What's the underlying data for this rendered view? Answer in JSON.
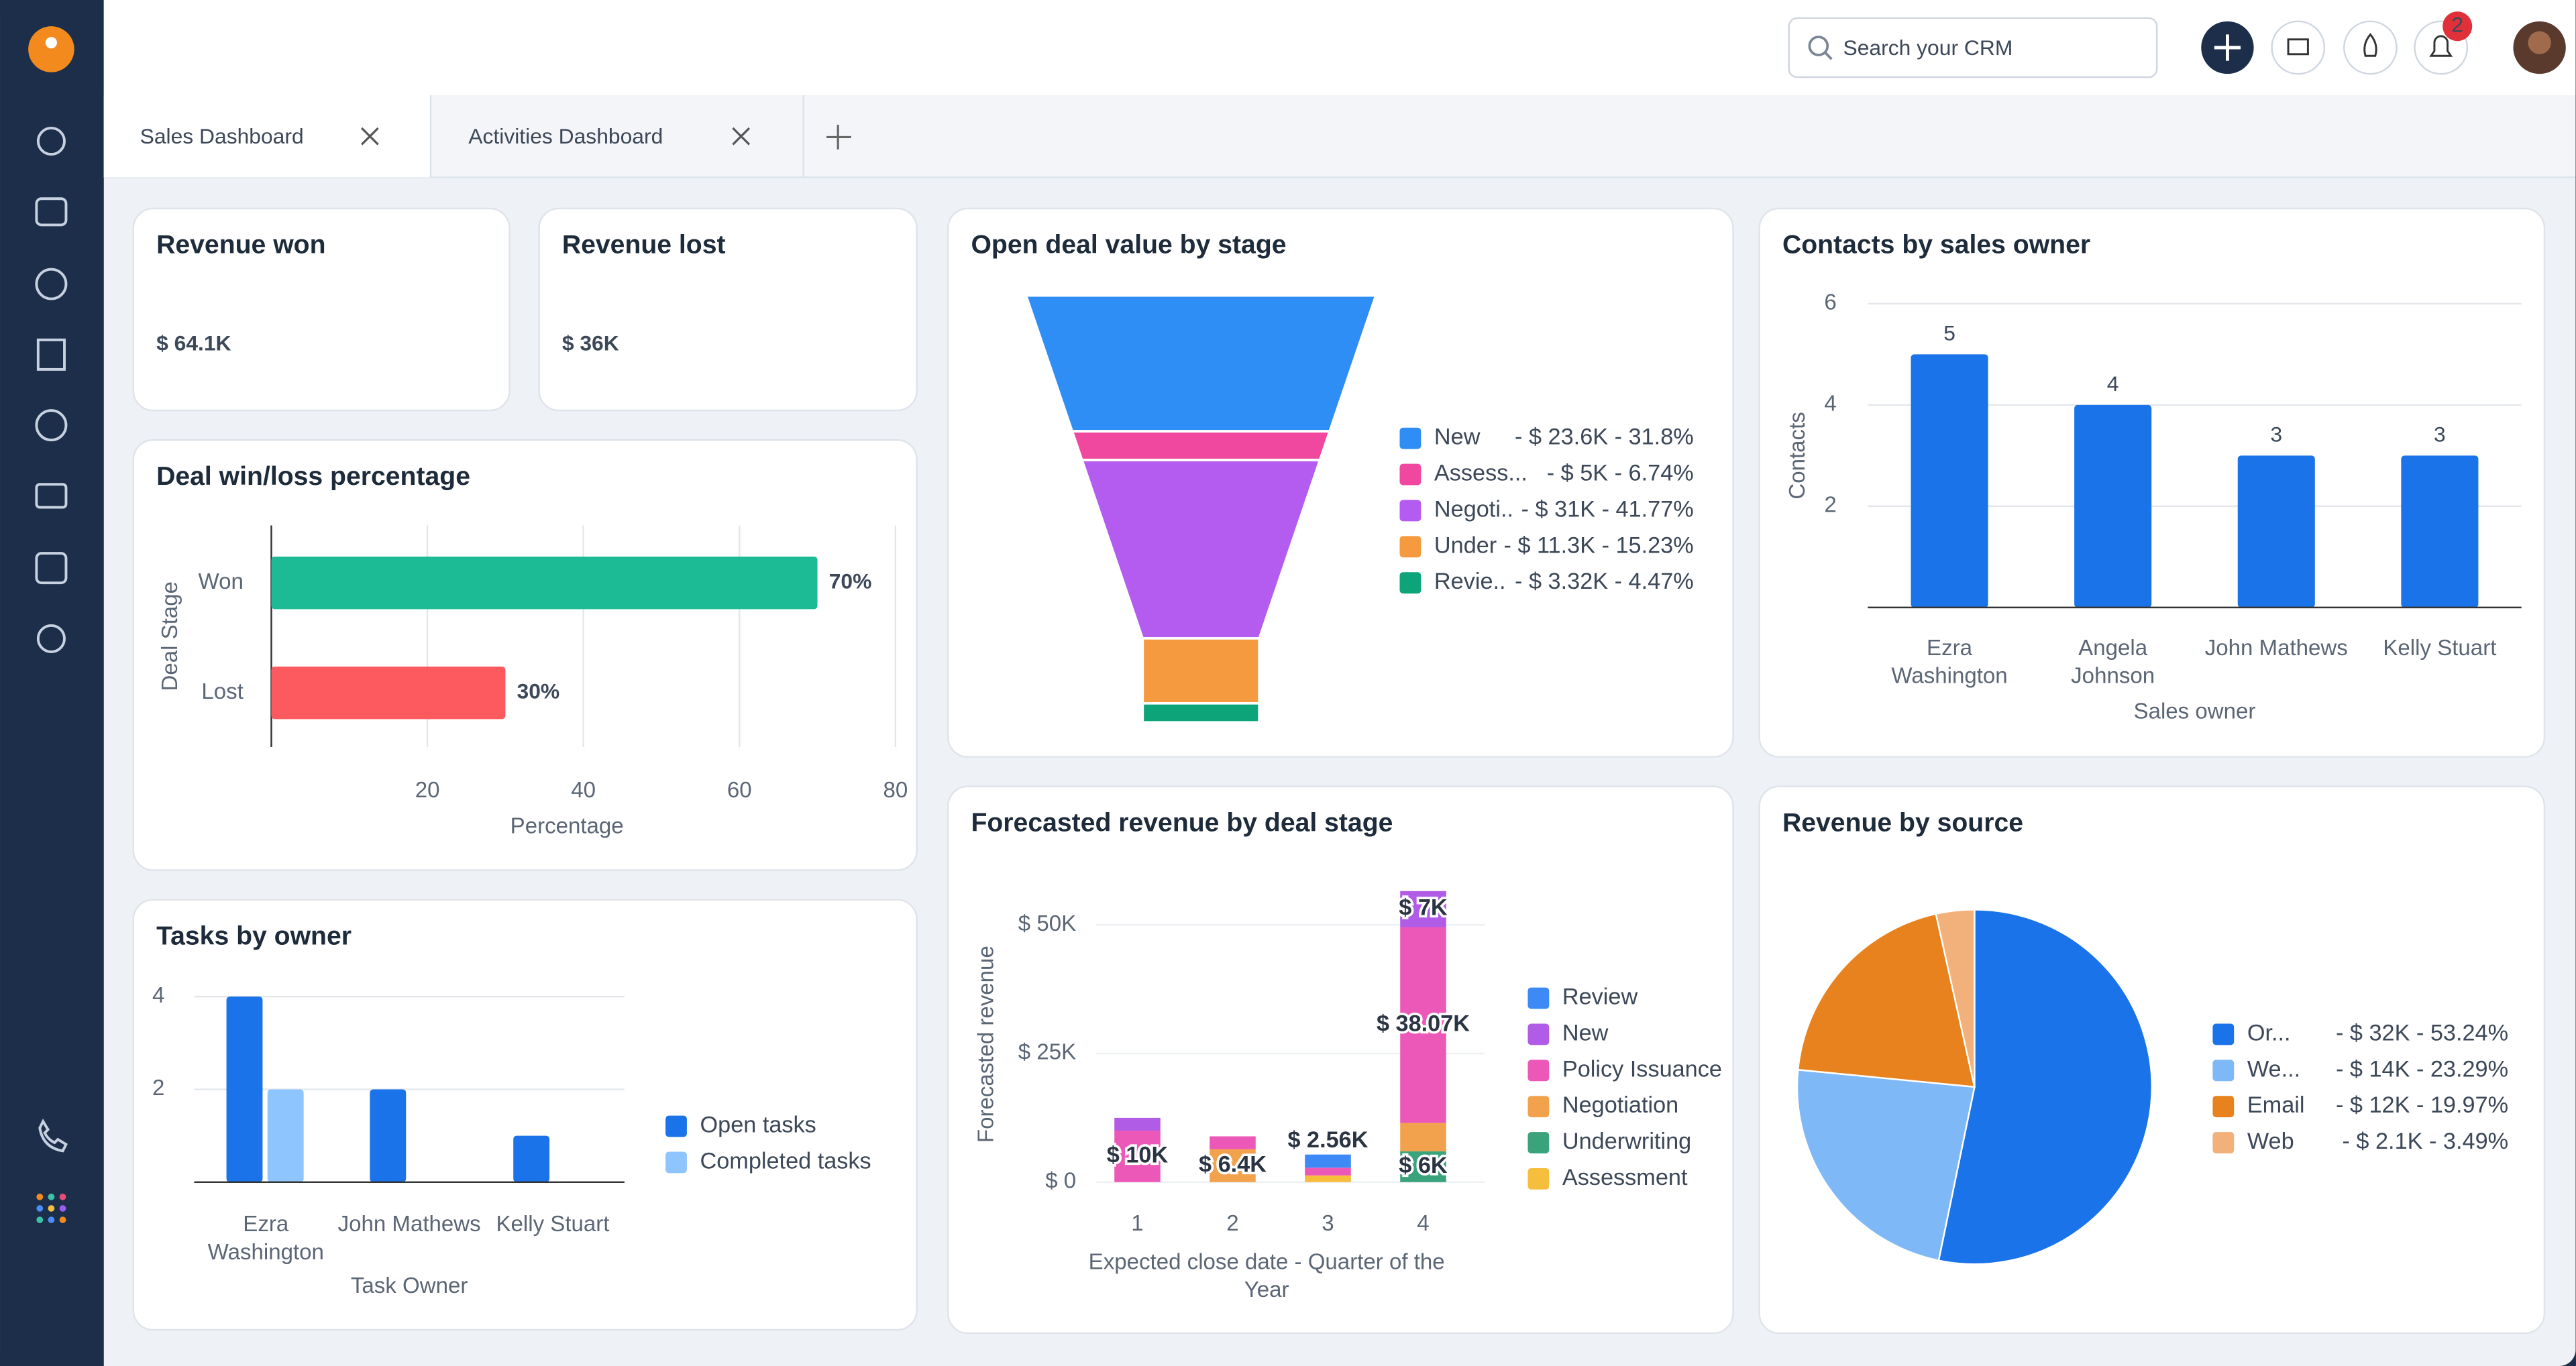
{
  "topbar": {
    "search_placeholder": "Search your CRM",
    "notification_count": "2"
  },
  "tabs": [
    "Sales Dashboard",
    "Activities Dashboard"
  ],
  "revenue_won": {
    "title": "Revenue won",
    "value": "$ 64.1K",
    "color": "#0f8a5f"
  },
  "revenue_lost": {
    "title": "Revenue lost",
    "value": "$ 36K",
    "color": "#e0313b"
  },
  "chart_data": [
    {
      "type": "hbar",
      "title": "Deal win/loss percentage",
      "categories": [
        "Won",
        "Lost"
      ],
      "values": [
        70,
        30
      ],
      "value_labels": [
        "70%",
        "30%"
      ],
      "colors": [
        "#1dba96",
        "#fc5a5e"
      ],
      "xlim": [
        0,
        80
      ],
      "xticks": [
        20,
        40,
        60,
        80
      ],
      "xlabel": "Percentage",
      "ylabel": "Deal Stage",
      "grid": true
    },
    {
      "type": "grouped_bar",
      "title": "Tasks by owner",
      "categories": [
        "Ezra Washington",
        "John Mathews",
        "Kelly Stuart"
      ],
      "series": [
        {
          "name": "Open tasks",
          "color": "#1a73e8",
          "values": [
            4,
            2,
            1
          ]
        },
        {
          "name": "Completed tasks",
          "color": "#8ec5ff",
          "values": [
            2,
            0,
            0
          ]
        }
      ],
      "ylim": [
        0,
        4
      ],
      "yticks": [
        2,
        4
      ],
      "xlabel": "Task Owner",
      "grid": true
    },
    {
      "type": "funnel",
      "title": "Open deal value by stage",
      "categories": [
        "New",
        "Assess...",
        "Negoti..",
        "Under",
        "Revie.."
      ],
      "values": [
        23600,
        5000,
        31000,
        11300,
        3320
      ],
      "value_labels": [
        "- $ 23.6K - 31.8%",
        "- $ 5K - 6.74%",
        "- $ 31K - 41.77%",
        "- $ 11.3K - 15.23%",
        "- $ 3.32K - 4.47%"
      ],
      "colors": [
        "#2f8ef5",
        "#f0489e",
        "#b45cf0",
        "#f59a3e",
        "#0ea47a"
      ]
    },
    {
      "type": "stacked_bar",
      "title": "Forecasted revenue by deal stage",
      "categories": [
        "1",
        "2",
        "3",
        "4"
      ],
      "series": [
        {
          "name": "Review",
          "color": "#3d8af7",
          "values": [
            0,
            0,
            2560,
            0
          ],
          "value_labels": [
            null,
            null,
            "$ 2.56K",
            null
          ]
        },
        {
          "name": "New",
          "color": "#b05ce6",
          "values": [
            2500,
            0,
            0,
            7000
          ],
          "value_labels": [
            null,
            null,
            null,
            "$ 7K"
          ]
        },
        {
          "name": "Policy Issuance",
          "color": "#ec58b8",
          "values": [
            10000,
            2500,
            1500,
            38070
          ],
          "value_labels": [
            "$ 10K",
            null,
            null,
            "$ 38.07K"
          ]
        },
        {
          "name": "Negotiation",
          "color": "#f2a24c",
          "values": [
            0,
            6400,
            0,
            5500
          ],
          "value_labels": [
            null,
            "$ 6.4K",
            null,
            null
          ]
        },
        {
          "name": "Underwriting",
          "color": "#3aa37c",
          "values": [
            0,
            0,
            0,
            6000
          ],
          "value_labels": [
            null,
            null,
            null,
            "$ 6K"
          ]
        },
        {
          "name": "Assessment",
          "color": "#f5be3c",
          "values": [
            0,
            0,
            1300,
            0
          ],
          "value_labels": [
            null,
            null,
            null,
            null
          ]
        }
      ],
      "ylim": [
        0,
        60000
      ],
      "yticks": [
        {
          "value": 0,
          "label": "$ 0"
        },
        {
          "value": 25000,
          "label": "$ 25K"
        },
        {
          "value": 50000,
          "label": "$ 50K"
        }
      ],
      "xlabel": "Expected close date - Quarter of the Year",
      "ylabel": "Forecasted revenue",
      "grid": true
    },
    {
      "type": "bar",
      "title": "Contacts by sales owner",
      "categories": [
        "Ezra Washington",
        "Angela Johnson",
        "John Mathews",
        "Kelly Stuart"
      ],
      "values": [
        5,
        4,
        3,
        3
      ],
      "color": "#1a73e8",
      "ylim": [
        0,
        6
      ],
      "yticks": [
        2,
        4,
        6
      ],
      "xlabel": "Sales owner",
      "ylabel": "Contacts",
      "grid": true
    },
    {
      "type": "pie",
      "title": "Revenue by source",
      "categories": [
        "Or...",
        "We...",
        "Email",
        "Web"
      ],
      "values": [
        32000,
        14000,
        12000,
        2100
      ],
      "value_labels": [
        "- $ 32K - 53.24%",
        "- $ 14K - 23.29%",
        "- $ 12K - 19.97%",
        "- $ 2.1K - 3.49%"
      ],
      "colors": [
        "#1a73e8",
        "#7fb8f7",
        "#e8821e",
        "#f2b07a"
      ]
    }
  ]
}
